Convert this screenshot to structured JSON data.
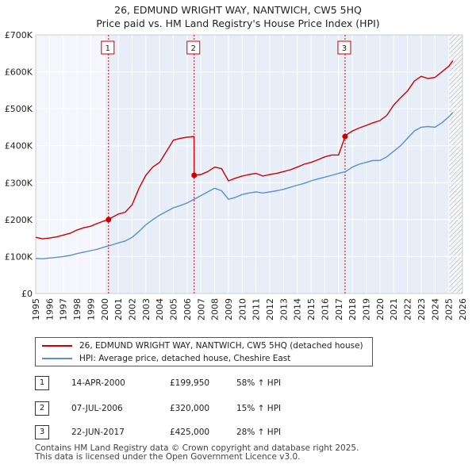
{
  "title": "26, EDMUND WRIGHT WAY, NANTWICH, CW5 5HQ",
  "subtitle": "Price paid vs. HM Land Registry's House Price Index (HPI)",
  "colors": {
    "price": "#cc0000",
    "hpi": "#5b8fc9",
    "shade": "#e8eef7",
    "grid": "#ffffff",
    "marker_line": "#cc0000"
  },
  "chart_data": {
    "type": "line",
    "xlabel": "",
    "ylabel": "",
    "xlim": [
      1995,
      2026
    ],
    "ylim": [
      0,
      700000
    ],
    "x_ticks": [
      "1995",
      "1996",
      "1997",
      "1998",
      "1999",
      "2000",
      "2001",
      "2002",
      "2003",
      "2004",
      "2005",
      "2006",
      "2007",
      "2008",
      "2009",
      "2010",
      "2011",
      "2012",
      "2013",
      "2014",
      "2015",
      "2016",
      "2017",
      "2018",
      "2019",
      "2020",
      "2021",
      "2022",
      "2023",
      "2024",
      "2025",
      "2026"
    ],
    "y_ticks": [
      {
        "value": 0,
        "label": "£0"
      },
      {
        "value": 100000,
        "label": "£100K"
      },
      {
        "value": 200000,
        "label": "£200K"
      },
      {
        "value": 300000,
        "label": "£300K"
      },
      {
        "value": 400000,
        "label": "£400K"
      },
      {
        "value": 500000,
        "label": "£500K"
      },
      {
        "value": 600000,
        "label": "£600K"
      },
      {
        "value": 700000,
        "label": "£700K"
      }
    ],
    "shaded_from": 2000.0,
    "hatched_from": 2025.0,
    "series": [
      {
        "name": "26, EDMUND WRIGHT WAY, NANTWICH, CW5 5HQ (detached house)",
        "x": [
          1995.0,
          1995.5,
          1996.0,
          1996.5,
          1997.0,
          1997.5,
          1998.0,
          1998.5,
          1999.0,
          1999.5,
          2000.0,
          2000.29,
          2000.5,
          2001.0,
          2001.5,
          2002.0,
          2002.5,
          2003.0,
          2003.5,
          2004.0,
          2004.5,
          2005.0,
          2005.5,
          2006.0,
          2006.5,
          2006.51,
          2007.0,
          2007.5,
          2008.0,
          2008.5,
          2009.0,
          2009.5,
          2010.0,
          2010.5,
          2011.0,
          2011.5,
          2012.0,
          2012.5,
          2013.0,
          2013.5,
          2014.0,
          2014.5,
          2015.0,
          2015.5,
          2016.0,
          2016.5,
          2017.0,
          2017.47,
          2017.5,
          2018.0,
          2018.5,
          2019.0,
          2019.5,
          2020.0,
          2020.5,
          2021.0,
          2021.5,
          2022.0,
          2022.5,
          2023.0,
          2023.5,
          2024.0,
          2024.5,
          2025.0,
          2025.3
        ],
        "values": [
          152000,
          148000,
          150000,
          153000,
          158000,
          163000,
          172000,
          178000,
          182000,
          190000,
          197000,
          199950,
          205000,
          215000,
          220000,
          240000,
          285000,
          320000,
          342000,
          355000,
          385000,
          415000,
          420000,
          423000,
          425000,
          320000,
          322000,
          330000,
          342000,
          338000,
          305000,
          312000,
          318000,
          322000,
          325000,
          318000,
          322000,
          325000,
          330000,
          335000,
          342000,
          350000,
          355000,
          362000,
          370000,
          375000,
          375000,
          425000,
          428000,
          440000,
          448000,
          455000,
          462000,
          468000,
          482000,
          510000,
          530000,
          548000,
          575000,
          588000,
          582000,
          585000,
          600000,
          615000,
          630000
        ]
      },
      {
        "name": "HPI: Average price, detached house, Cheshire East",
        "x": [
          1995.0,
          1995.5,
          1996.0,
          1996.5,
          1997.0,
          1997.5,
          1998.0,
          1998.5,
          1999.0,
          1999.5,
          2000.0,
          2000.5,
          2001.0,
          2001.5,
          2002.0,
          2002.5,
          2003.0,
          2003.5,
          2004.0,
          2004.5,
          2005.0,
          2005.5,
          2006.0,
          2006.5,
          2007.0,
          2007.5,
          2008.0,
          2008.5,
          2009.0,
          2009.5,
          2010.0,
          2010.5,
          2011.0,
          2011.5,
          2012.0,
          2012.5,
          2013.0,
          2013.5,
          2014.0,
          2014.5,
          2015.0,
          2015.5,
          2016.0,
          2016.5,
          2017.0,
          2017.5,
          2018.0,
          2018.5,
          2019.0,
          2019.5,
          2020.0,
          2020.5,
          2021.0,
          2021.5,
          2022.0,
          2022.5,
          2023.0,
          2023.5,
          2024.0,
          2024.5,
          2025.0,
          2025.3
        ],
        "values": [
          95000,
          94000,
          96000,
          98000,
          100000,
          103000,
          108000,
          112000,
          116000,
          120000,
          126000,
          131000,
          137000,
          142000,
          152000,
          168000,
          186000,
          200000,
          212000,
          222000,
          232000,
          238000,
          245000,
          255000,
          265000,
          275000,
          285000,
          278000,
          255000,
          260000,
          268000,
          272000,
          275000,
          272000,
          275000,
          278000,
          282000,
          288000,
          293000,
          298000,
          305000,
          310000,
          315000,
          320000,
          325000,
          330000,
          342000,
          350000,
          355000,
          360000,
          360000,
          370000,
          385000,
          400000,
          420000,
          440000,
          450000,
          452000,
          450000,
          462000,
          478000,
          490000
        ]
      }
    ],
    "annotations": [
      {
        "label": "1",
        "x": 2000.29,
        "value": 199950
      },
      {
        "label": "2",
        "x": 2006.51,
        "value": 320000
      },
      {
        "label": "3",
        "x": 2017.47,
        "value": 425000
      }
    ]
  },
  "legend": {
    "price_label": "26, EDMUND WRIGHT WAY, NANTWICH, CW5 5HQ (detached house)",
    "hpi_label": "HPI: Average price, detached house, Cheshire East"
  },
  "sales": [
    {
      "num": "1",
      "date": "14-APR-2000",
      "price": "£199,950",
      "hpi": "58% ↑ HPI"
    },
    {
      "num": "2",
      "date": "07-JUL-2006",
      "price": "£320,000",
      "hpi": "15% ↑ HPI"
    },
    {
      "num": "3",
      "date": "22-JUN-2017",
      "price": "£425,000",
      "hpi": "28% ↑ HPI"
    }
  ],
  "footer": {
    "line1": "Contains HM Land Registry data © Crown copyright and database right 2025.",
    "line2": "This data is licensed under the Open Government Licence v3.0."
  }
}
